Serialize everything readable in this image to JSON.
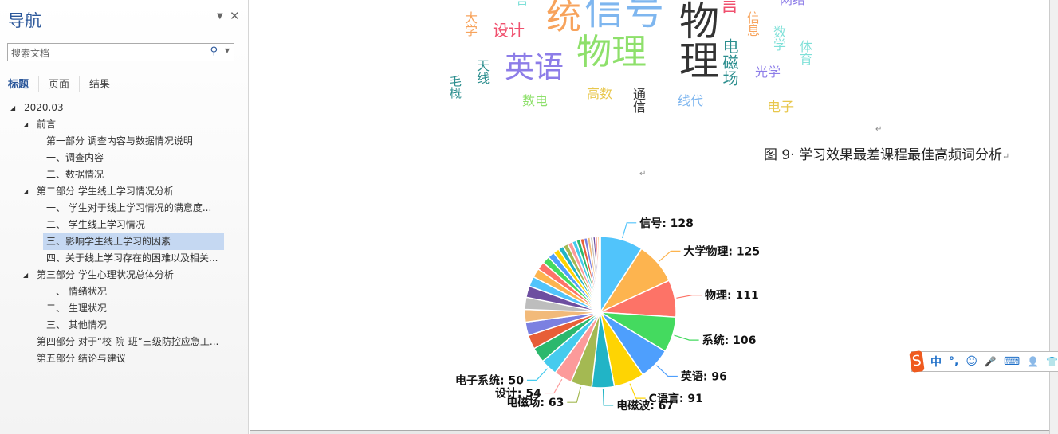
{
  "nav": {
    "title": "导航",
    "search_placeholder": "搜索文档",
    "tabs": [
      "标题",
      "页面",
      "结果"
    ],
    "tree": [
      {
        "label": "2020.03",
        "level": 0,
        "expanded": true
      },
      {
        "label": "前言",
        "level": 1,
        "expanded": true
      },
      {
        "label": "第一部分 调查内容与数据情况说明",
        "level": 2
      },
      {
        "label": "一、调查内容",
        "level": 2
      },
      {
        "label": "二、数据情况",
        "level": 2
      },
      {
        "label": "第二部分 学生线上学习情况分析",
        "level": 1,
        "expanded": true
      },
      {
        "label": "一、 学生对于线上学习情况的满意度...",
        "level": 2
      },
      {
        "label": "二、 学生线上学习情况",
        "level": 2
      },
      {
        "label": "三、影响学生线上学习的因素",
        "level": 2,
        "selected": true
      },
      {
        "label": "四、关于线上学习存在的困难以及相关...",
        "level": 2
      },
      {
        "label": "第三部分 学生心理状况总体分析",
        "level": 1,
        "expanded": true
      },
      {
        "label": "一、 情绪状况",
        "level": 2
      },
      {
        "label": "二、 生理状况",
        "level": 2
      },
      {
        "label": "三、 其他情况",
        "level": 2
      },
      {
        "label": "第四部分 对于“校-院-班”三级防控应急工...",
        "level": 1
      },
      {
        "label": "第五部分 结论与建议",
        "level": 1
      }
    ]
  },
  "wordcloud": {
    "words": [
      "信号",
      "统",
      "物理",
      "物理",
      "英语",
      "设计",
      "大学",
      "言",
      "言",
      "网络",
      "信息",
      "数学",
      "体育",
      "电磁场",
      "光学",
      "天线",
      "毛概",
      "数电",
      "高数",
      "通信",
      "线代",
      "电子"
    ]
  },
  "caption": "图 9· 学习效果最差课程最佳高频词分析",
  "paragraph_mark": "↵",
  "chart_data": {
    "type": "pie",
    "start": "top",
    "direction": "clockwise",
    "slices": [
      {
        "name": "信号",
        "value": 128,
        "color": "#51c4fb"
      },
      {
        "name": "大学物理",
        "value": 125,
        "color": "#fdb44f"
      },
      {
        "name": "物理",
        "value": 111,
        "color": "#fd7367"
      },
      {
        "name": "系统",
        "value": 106,
        "color": "#44da5f"
      },
      {
        "name": "英语",
        "value": 96,
        "color": "#4e9ffd"
      },
      {
        "name": "C语言",
        "value": 91,
        "color": "#fed403"
      },
      {
        "value": 67,
        "color": "#21b4c6"
      },
      {
        "value": 63,
        "color": "#a4b952"
      },
      {
        "value": 54,
        "color": "#fc9a9a"
      },
      {
        "value": 50,
        "color": "#45cbee"
      },
      {
        "value": 45,
        "color": "#2bb86d"
      },
      {
        "value": 42,
        "color": "#e75e37"
      },
      {
        "value": 40,
        "color": "#7b80e1"
      },
      {
        "value": 38,
        "color": "#f2ba7a"
      },
      {
        "value": 36,
        "color": "#bdbdbd"
      },
      {
        "value": 34,
        "color": "#6d4ea0"
      },
      {
        "value": 30,
        "color": "#51c4fb"
      },
      {
        "value": 27,
        "color": "#fdb44f"
      },
      {
        "value": 24,
        "color": "#fd7367"
      },
      {
        "value": 22,
        "color": "#44da5f"
      },
      {
        "value": 20,
        "color": "#4e9ffd"
      },
      {
        "value": 18,
        "color": "#fed403"
      },
      {
        "value": 16,
        "color": "#21b4c6"
      },
      {
        "value": 15,
        "color": "#a4b952"
      },
      {
        "value": 14,
        "color": "#fc9a9a"
      },
      {
        "value": 13,
        "color": "#45cbee"
      },
      {
        "value": 12,
        "color": "#2bb86d"
      },
      {
        "value": 11,
        "color": "#e75e37"
      },
      {
        "value": 10,
        "color": "#7b80e1"
      },
      {
        "value": 9,
        "color": "#f2ba7a"
      },
      {
        "value": 8,
        "color": "#bdbdbd"
      },
      {
        "value": 7,
        "color": "#6d4ea0"
      },
      {
        "value": 6,
        "color": "#fd7367"
      },
      {
        "value": 5,
        "color": "#fdb44f"
      },
      {
        "value": 4,
        "color": "#bdbdbd"
      }
    ],
    "labels": [
      {
        "slice": 0,
        "text": "信号: 128"
      },
      {
        "slice": 1,
        "text": "大学物理: 125"
      },
      {
        "slice": 2,
        "text": "物理: 111"
      },
      {
        "slice": 3,
        "text": "系统: 106"
      },
      {
        "slice": 4,
        "text": "英语: 96"
      },
      {
        "slice": 5,
        "text": "C语言: 91"
      },
      {
        "slice": 6,
        "text": "电磁波: 67"
      },
      {
        "slice": 7,
        "text": "电磁场: 63"
      },
      {
        "slice": 8,
        "text": "设计: 54"
      },
      {
        "slice": 9,
        "text": "电子系统: 50"
      }
    ]
  },
  "ime": {
    "logo": "S",
    "items": [
      "中",
      "°,",
      "☺",
      "🎤",
      "⌨",
      "👤",
      "👕"
    ]
  }
}
